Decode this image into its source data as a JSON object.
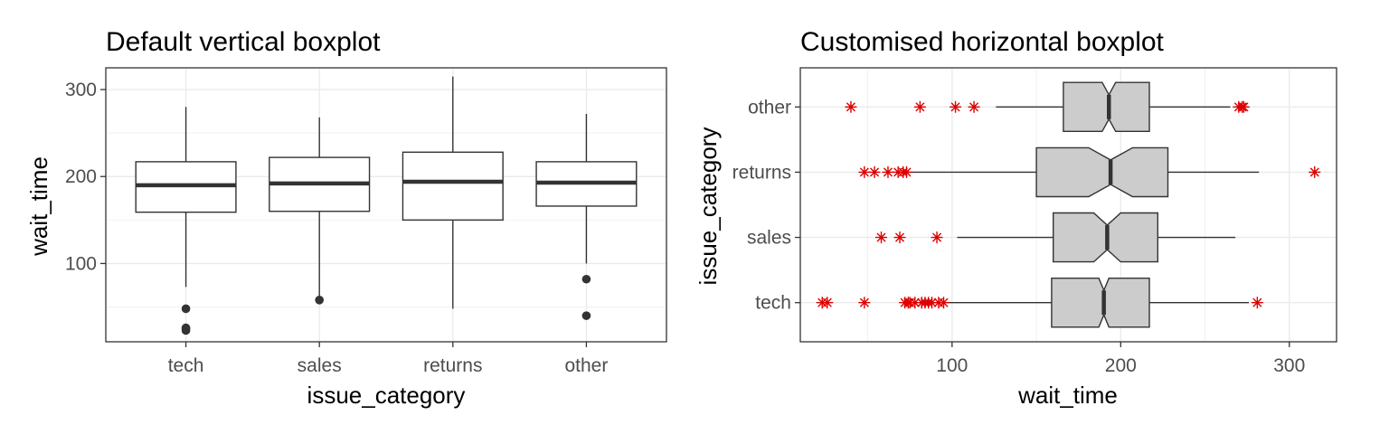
{
  "chart_data": [
    {
      "type": "box",
      "orientation": "vertical",
      "title": "Default vertical boxplot",
      "xlabel": "issue_category",
      "ylabel": "wait_time",
      "ylim": [
        10,
        325
      ],
      "y_ticks": [
        100,
        200,
        300
      ],
      "grid": true,
      "colors": {
        "box_fill": "#ffffff",
        "box_line": "#333333",
        "outlier": "#333333",
        "panel_border": "#333333",
        "grid": "#ebebeb"
      },
      "categories": [
        "tech",
        "sales",
        "returns",
        "other"
      ],
      "boxes": [
        {
          "category": "tech",
          "whisker_low": 73,
          "q1": 159,
          "median": 190,
          "q3": 217,
          "whisker_high": 280,
          "outliers": [
            23,
            25,
            26,
            48
          ]
        },
        {
          "category": "sales",
          "whisker_low": 60,
          "q1": 160,
          "median": 192,
          "q3": 222,
          "whisker_high": 268,
          "outliers": [
            58
          ]
        },
        {
          "category": "returns",
          "whisker_low": 48,
          "q1": 150,
          "median": 194,
          "q3": 228,
          "whisker_high": 315,
          "outliers": []
        },
        {
          "category": "other",
          "whisker_low": 100,
          "q1": 166,
          "median": 193,
          "q3": 217,
          "whisker_high": 272,
          "outliers": [
            40,
            82
          ]
        }
      ]
    },
    {
      "type": "box",
      "orientation": "horizontal",
      "notched": true,
      "title": "Customised horizontal boxplot",
      "xlabel": "wait_time",
      "ylabel": "issue_category",
      "xlim": [
        10,
        328
      ],
      "x_ticks": [
        100,
        200,
        300
      ],
      "grid": true,
      "colors": {
        "box_fill": "#cccccc",
        "box_line": "#333333",
        "outlier": "#dd0000",
        "panel_border": "#333333",
        "grid": "#ebebeb"
      },
      "categories": [
        "other",
        "returns",
        "sales",
        "tech"
      ],
      "boxes": [
        {
          "category": "other",
          "whisker_low": 126,
          "q1": 166,
          "median": 193,
          "q3": 217,
          "whisker_high": 265,
          "notch_low": 189,
          "notch_high": 197,
          "outliers": [
            40,
            81,
            102,
            113,
            270,
            272,
            273
          ]
        },
        {
          "category": "returns",
          "whisker_low": 73,
          "q1": 150,
          "median": 194,
          "q3": 228,
          "whisker_high": 282,
          "notch_low": 181,
          "notch_high": 207,
          "outliers": [
            48,
            54,
            62,
            68,
            71,
            73,
            315
          ]
        },
        {
          "category": "sales",
          "whisker_low": 103,
          "q1": 160,
          "median": 192,
          "q3": 222,
          "whisker_high": 268,
          "notch_low": 184,
          "notch_high": 200,
          "outliers": [
            58,
            69,
            91
          ]
        },
        {
          "category": "tech",
          "whisker_low": 97,
          "q1": 159,
          "median": 190,
          "q3": 217,
          "whisker_high": 276,
          "notch_low": 187,
          "notch_high": 193,
          "outliers": [
            23,
            26,
            48,
            72,
            74,
            75,
            78,
            82,
            84,
            86,
            88,
            92,
            95,
            281
          ]
        }
      ]
    }
  ]
}
